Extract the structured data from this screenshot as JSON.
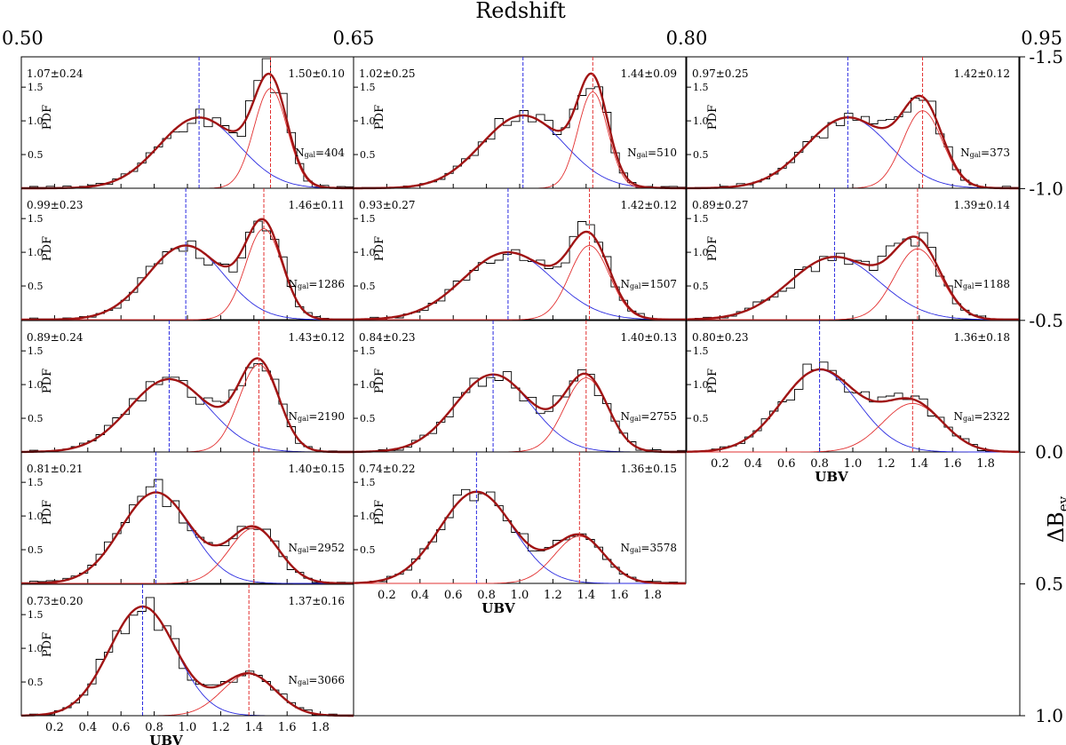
{
  "chart_data": {
    "type": "histogram-grid",
    "title": "Redshift",
    "top_axis": {
      "label": "Redshift",
      "ticks": [
        "0.50",
        "0.65",
        "0.80",
        "0.95"
      ],
      "range": [
        0.5,
        0.95
      ]
    },
    "right_axis": {
      "label": "ΔB",
      "label_sub": "ev",
      "ticks": [
        "-1.5",
        "-1.0",
        "-0.5",
        "0.0",
        "0.5",
        "1.0"
      ],
      "range": [
        -1.5,
        1.0
      ]
    },
    "panel_axes": {
      "x_label": "UBV",
      "y_label": "PDF",
      "x_range": [
        0.0,
        2.0
      ],
      "y_range": [
        0.0,
        1.95
      ],
      "x_ticks": [
        "0.2",
        "0.4",
        "0.6",
        "0.8",
        "1.0",
        "1.2",
        "1.4",
        "1.6",
        "1.8"
      ],
      "y_ticks": [
        "0.5",
        "1.0",
        "1.5"
      ]
    },
    "colors": {
      "blue": "#2a2ae0",
      "red": "#e23030",
      "total": "#a01414",
      "hist": "#000000"
    },
    "panels": [
      {
        "row": 0,
        "col": 0,
        "blue": {
          "mu": 1.07,
          "sigma": 0.24,
          "label": "1.07±0.24"
        },
        "red": {
          "mu": 1.5,
          "sigma": 0.1,
          "label": "1.50±0.10"
        },
        "ngal": "404",
        "blue_amp": 1.05,
        "red_amp": 1.48,
        "seed": 3
      },
      {
        "row": 0,
        "col": 1,
        "blue": {
          "mu": 1.02,
          "sigma": 0.25,
          "label": "1.02±0.25"
        },
        "red": {
          "mu": 1.44,
          "sigma": 0.09,
          "label": "1.44±0.09"
        },
        "ngal": "510",
        "blue_amp": 1.08,
        "red_amp": 1.43,
        "seed": 7
      },
      {
        "row": 0,
        "col": 2,
        "blue": {
          "mu": 0.97,
          "sigma": 0.25,
          "label": "0.97±0.25"
        },
        "red": {
          "mu": 1.42,
          "sigma": 0.12,
          "label": "1.42±0.12"
        },
        "ngal": "373",
        "blue_amp": 1.05,
        "red_amp": 1.15,
        "seed": 11
      },
      {
        "row": 1,
        "col": 0,
        "blue": {
          "mu": 0.99,
          "sigma": 0.23,
          "label": "0.99±0.23"
        },
        "red": {
          "mu": 1.46,
          "sigma": 0.11,
          "label": "1.46±0.11"
        },
        "ngal": "1286",
        "blue_amp": 1.1,
        "red_amp": 1.35,
        "seed": 13
      },
      {
        "row": 1,
        "col": 1,
        "blue": {
          "mu": 0.93,
          "sigma": 0.27,
          "label": "0.93±0.27"
        },
        "red": {
          "mu": 1.42,
          "sigma": 0.12,
          "label": "1.42±0.12"
        },
        "ngal": "1507",
        "blue_amp": 1.0,
        "red_amp": 1.1,
        "seed": 17
      },
      {
        "row": 1,
        "col": 2,
        "blue": {
          "mu": 0.89,
          "sigma": 0.27,
          "label": "0.89±0.27"
        },
        "red": {
          "mu": 1.39,
          "sigma": 0.14,
          "label": "1.39±0.14"
        },
        "ngal": "1188",
        "blue_amp": 0.93,
        "red_amp": 1.05,
        "seed": 19
      },
      {
        "row": 2,
        "col": 0,
        "blue": {
          "mu": 0.89,
          "sigma": 0.24,
          "label": "0.89±0.24"
        },
        "red": {
          "mu": 1.43,
          "sigma": 0.12,
          "label": "1.43±0.12"
        },
        "ngal": "2190",
        "blue_amp": 1.08,
        "red_amp": 1.3,
        "seed": 23
      },
      {
        "row": 2,
        "col": 1,
        "blue": {
          "mu": 0.84,
          "sigma": 0.23,
          "label": "0.84±0.23"
        },
        "red": {
          "mu": 1.4,
          "sigma": 0.13,
          "label": "1.40±0.13"
        },
        "ngal": "2755",
        "blue_amp": 1.15,
        "red_amp": 1.1,
        "seed": 29
      },
      {
        "row": 2,
        "col": 2,
        "blue": {
          "mu": 0.8,
          "sigma": 0.23,
          "label": "0.80±0.23"
        },
        "red": {
          "mu": 1.36,
          "sigma": 0.18,
          "label": "1.36±0.18"
        },
        "ngal": "2322",
        "blue_amp": 1.22,
        "red_amp": 0.72,
        "seed": 31
      },
      {
        "row": 3,
        "col": 0,
        "blue": {
          "mu": 0.81,
          "sigma": 0.21,
          "label": "0.81±0.21"
        },
        "red": {
          "mu": 1.4,
          "sigma": 0.15,
          "label": "1.40±0.15"
        },
        "ngal": "2952",
        "blue_amp": 1.35,
        "red_amp": 0.82,
        "seed": 37
      },
      {
        "row": 3,
        "col": 1,
        "blue": {
          "mu": 0.74,
          "sigma": 0.22,
          "label": "0.74±0.22"
        },
        "red": {
          "mu": 1.36,
          "sigma": 0.15,
          "label": "1.36±0.15"
        },
        "ngal": "3578",
        "blue_amp": 1.36,
        "red_amp": 0.7,
        "seed": 41
      },
      {
        "row": 4,
        "col": 0,
        "blue": {
          "mu": 0.73,
          "sigma": 0.2,
          "label": "0.73±0.20"
        },
        "red": {
          "mu": 1.37,
          "sigma": 0.16,
          "label": "1.37±0.16"
        },
        "ngal": "3066",
        "blue_amp": 1.62,
        "red_amp": 0.62,
        "seed": 43
      }
    ],
    "ngal_label": "N",
    "ngal_sub": "gal"
  }
}
